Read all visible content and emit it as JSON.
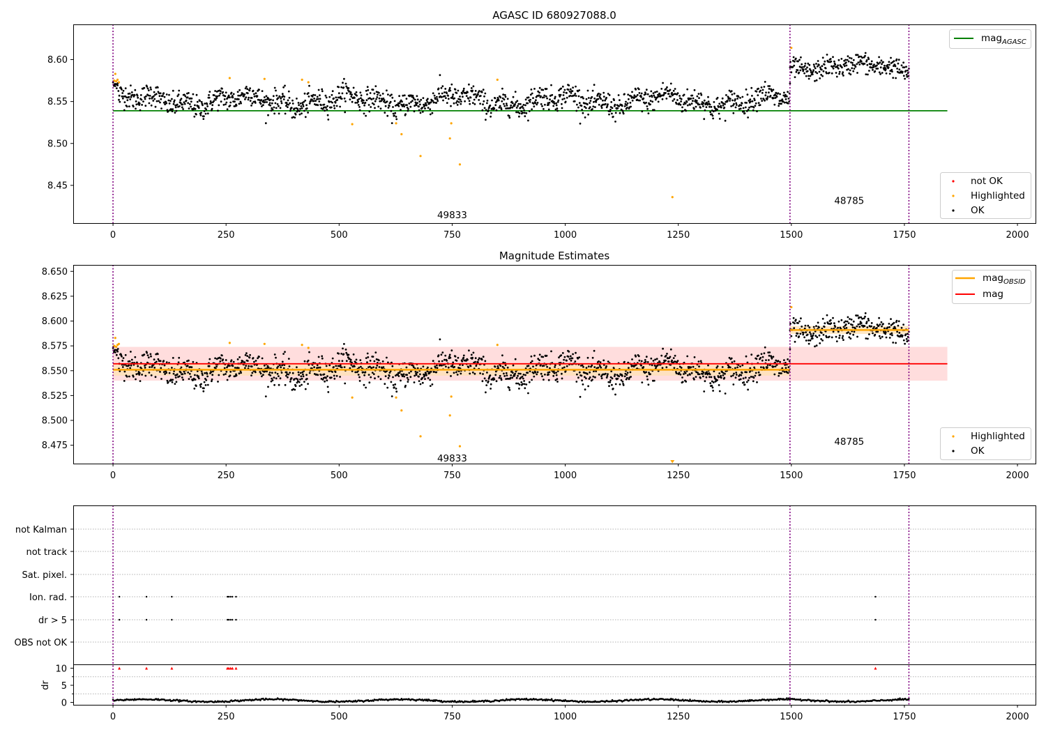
{
  "chart_data": [
    {
      "type": "scatter",
      "title": "AGASC ID 680927088.0",
      "xlim": [
        -88,
        2040
      ],
      "ylim": [
        8.405,
        8.642
      ],
      "xticks": [
        0,
        250,
        500,
        750,
        1000,
        1250,
        1500,
        1750,
        2000
      ],
      "yticks": [
        8.45,
        8.5,
        8.55,
        8.6
      ],
      "ytick_labels": [
        "8.45",
        "8.50",
        "8.55",
        "8.60"
      ],
      "vlines": [
        0,
        1497,
        1760
      ],
      "hlines": [
        {
          "name": "mag_AGASC",
          "y": 8.539,
          "x0": 0,
          "x1": 1845,
          "color": "#008000"
        }
      ],
      "segments": [
        {
          "x0": 0,
          "x1": 1497,
          "mean": 8.551,
          "amp": 0.006,
          "noise": 0.007,
          "label": "49833",
          "label_x": 750,
          "label_y": 8.415
        },
        {
          "x0": 1497,
          "x1": 1760,
          "mean": 8.591,
          "amp": 0.004,
          "noise": 0.006,
          "label": "48785",
          "label_x": 1628,
          "label_y": 8.432
        }
      ],
      "highlighted": [
        [
          3,
          8.575
        ],
        [
          5,
          8.583
        ],
        [
          7,
          8.574
        ],
        [
          10,
          8.576
        ],
        [
          13,
          8.573
        ],
        [
          258,
          8.578
        ],
        [
          335,
          8.577
        ],
        [
          418,
          8.576
        ],
        [
          432,
          8.573
        ],
        [
          529,
          8.523
        ],
        [
          626,
          8.524
        ],
        [
          638,
          8.511
        ],
        [
          680,
          8.485
        ],
        [
          745,
          8.506
        ],
        [
          748,
          8.524
        ],
        [
          767,
          8.475
        ],
        [
          850,
          8.576
        ],
        [
          1237,
          8.436
        ],
        [
          1500,
          8.614
        ]
      ],
      "legend_top": [
        {
          "name": "mag",
          "sub": "AGASC",
          "color": "#008000"
        }
      ],
      "legend_bottom": [
        {
          "name": "not OK",
          "color": "#ff0000"
        },
        {
          "name": "Highlighted",
          "color": "#ffa500"
        },
        {
          "name": "OK",
          "color": "#000000"
        }
      ]
    },
    {
      "type": "scatter",
      "title": "Magnitude Estimates",
      "xlim": [
        -88,
        2040
      ],
      "ylim": [
        8.4565,
        8.6565
      ],
      "xticks": [
        0,
        250,
        500,
        750,
        1000,
        1250,
        1500,
        1750,
        2000
      ],
      "yticks": [
        8.475,
        8.5,
        8.525,
        8.55,
        8.575,
        8.6,
        8.625,
        8.65
      ],
      "ytick_labels": [
        "8.475",
        "8.500",
        "8.525",
        "8.550",
        "8.575",
        "8.600",
        "8.625",
        "8.650"
      ],
      "vlines": [
        0,
        1497,
        1760
      ],
      "band": {
        "y0": 8.54,
        "y1": 8.574,
        "x0": 0,
        "x1": 1845,
        "color": "#ffdddd"
      },
      "hlines": [
        {
          "name": "mag",
          "y": 8.557,
          "x0": 0,
          "x1": 1845,
          "color": "#ff0000"
        }
      ],
      "obsid_lines": [
        {
          "x0": 0,
          "x1": 1497,
          "y": 8.551,
          "band": [
            8.545,
            8.557
          ]
        },
        {
          "x0": 1497,
          "x1": 1760,
          "y": 8.591,
          "band": [
            8.587,
            8.595
          ]
        }
      ],
      "segments": [
        {
          "x0": 0,
          "x1": 1497,
          "mean": 8.551,
          "amp": 0.006,
          "noise": 0.007,
          "label": "49833",
          "label_x": 750,
          "label_y": 8.462
        },
        {
          "x0": 1497,
          "x1": 1760,
          "mean": 8.591,
          "amp": 0.004,
          "noise": 0.006,
          "label": "48785",
          "label_x": 1628,
          "label_y": 8.479
        }
      ],
      "highlighted": [
        [
          3,
          8.575
        ],
        [
          5,
          8.583
        ],
        [
          7,
          8.574
        ],
        [
          10,
          8.576
        ],
        [
          13,
          8.577
        ],
        [
          258,
          8.578
        ],
        [
          335,
          8.577
        ],
        [
          418,
          8.576
        ],
        [
          432,
          8.573
        ],
        [
          529,
          8.523
        ],
        [
          626,
          8.523
        ],
        [
          638,
          8.51
        ],
        [
          680,
          8.484
        ],
        [
          745,
          8.505
        ],
        [
          748,
          8.524
        ],
        [
          767,
          8.474
        ],
        [
          850,
          8.576
        ],
        [
          1500,
          8.614
        ]
      ],
      "offscale_marker": {
        "x": 1237,
        "color": "#ffa500"
      },
      "legend_top": [
        {
          "name": "mag",
          "sub": "OBSID",
          "color": "#ffa500"
        },
        {
          "name": "mag",
          "sub": "",
          "color": "#ff0000"
        }
      ],
      "legend_bottom": [
        {
          "name": "Highlighted",
          "color": "#ffa500"
        },
        {
          "name": "OK",
          "color": "#000000"
        }
      ]
    },
    {
      "type": "scatter",
      "xlim": [
        -88,
        2040
      ],
      "xticks": [
        0,
        250,
        500,
        750,
        1000,
        1250,
        1500,
        1750,
        2000
      ],
      "vlines": [
        0,
        1497,
        1760
      ],
      "flag_rows": [
        "not Kalman",
        "not track",
        "Sat. pixel.",
        "Ion. rad.",
        "dr > 5",
        "OBS not OK"
      ],
      "flag_points": {
        "Ion. rad.": [
          14,
          74,
          130,
          253,
          256,
          260,
          264,
          272,
          1686
        ],
        "dr > 5": [
          14,
          74,
          130,
          253,
          256,
          260,
          264,
          272,
          1686
        ]
      },
      "dr": {
        "ylabel": "dr",
        "ylim": [
          -0.5,
          10.5
        ],
        "yticks": [
          0,
          5,
          10
        ],
        "mean": 0.55,
        "clipped_x": [
          14,
          74,
          130,
          253,
          256,
          260,
          264,
          272,
          1686
        ],
        "clip_value": 10
      }
    }
  ]
}
